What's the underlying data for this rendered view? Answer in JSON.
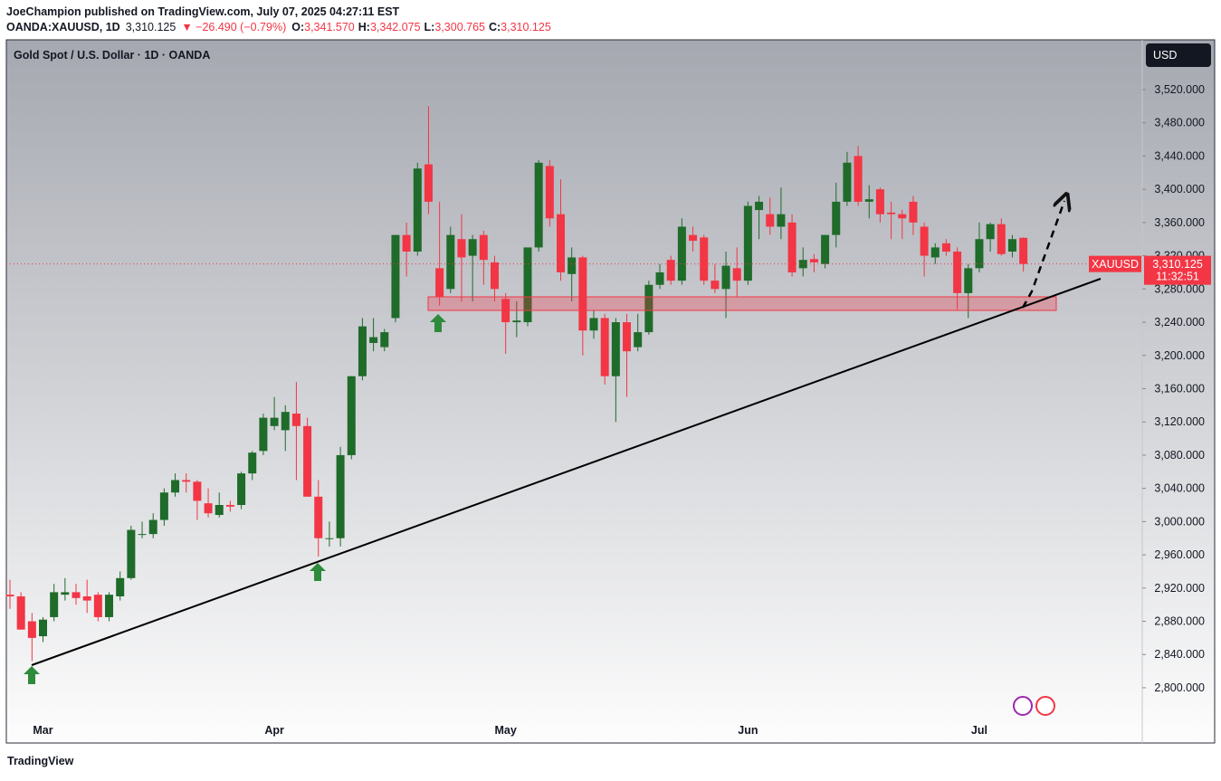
{
  "header": {
    "publisher": "JoeChampion published on TradingView.com, July 07, 2025 04:27:11 EST",
    "symbol": "OANDA:XAUUSD, 1D",
    "last": "3,310.125",
    "change": "▼ −26.490 (−0.79%)",
    "ohlc": [
      {
        "label": "O:",
        "value": "3,341.570"
      },
      {
        "label": "H:",
        "value": "3,342.075"
      },
      {
        "label": "L:",
        "value": "3,300.765"
      },
      {
        "label": "C:",
        "value": "3,310.125"
      }
    ]
  },
  "footer": {
    "brand": "TradingView"
  },
  "chart_data": {
    "type": "candlestick",
    "title": "Gold Spot / U.S. Dollar · 1D · OANDA",
    "currency": "USD",
    "symbol": "XAUUSD",
    "countdown": "11:32:51",
    "last_price": {
      "value": 3310.125,
      "label": "3,310.125"
    },
    "up_color": "#1f6b2a",
    "down_color": "#f23645",
    "categories": [
      null,
      null,
      null,
      "Mar",
      null,
      null,
      null,
      null,
      null,
      null,
      null,
      null,
      null,
      null,
      null,
      null,
      null,
      null,
      null,
      null,
      null,
      null,
      null,
      null,
      "Apr",
      null,
      null,
      null,
      null,
      null,
      null,
      null,
      null,
      null,
      null,
      null,
      null,
      null,
      null,
      null,
      null,
      null,
      null,
      null,
      null,
      "May",
      null,
      null,
      null,
      null,
      null,
      null,
      null,
      null,
      null,
      null,
      null,
      null,
      null,
      null,
      null,
      null,
      null,
      null,
      null,
      null,
      null,
      "Jun",
      null,
      null,
      null,
      null,
      null,
      null,
      null,
      null,
      null,
      null,
      null,
      null,
      null,
      null,
      null,
      null,
      null,
      null,
      null,
      null,
      "Jul",
      null,
      null,
      null,
      null
    ],
    "open": [
      2912,
      2910,
      2880,
      2862,
      2885,
      2912,
      2915,
      2910,
      2912,
      2885,
      2910,
      2932,
      2985,
      2985,
      3002,
      3035,
      3050,
      3048,
      3022,
      3008,
      3020,
      3020,
      3058,
      3085,
      3115,
      3110,
      3130,
      3115,
      3030,
      2980,
      2980,
      3080,
      3175,
      3215,
      3210,
      3245,
      3345,
      3325,
      3430,
      3305,
      3280,
      3340,
      3320,
      3345,
      3312,
      3268,
      3240,
      3240,
      3330,
      3428,
      3370,
      3298,
      3318,
      3230,
      3245,
      3175,
      3240,
      3210,
      3228,
      3285,
      3315,
      3290,
      3345,
      3342,
      3290,
      3280,
      3305,
      3290,
      3375,
      3370,
      3355,
      3360,
      3305,
      3316,
      3310,
      3345,
      3385,
      3440,
      3385,
      3400,
      3372,
      3370,
      3385,
      3355,
      3318,
      3335,
      3325,
      3275,
      3305,
      3340,
      3358,
      3325,
      3341.57
    ],
    "high": [
      2930,
      2915,
      2890,
      2885,
      2925,
      2932,
      2925,
      2930,
      2915,
      2915,
      2940,
      2995,
      3000,
      3010,
      3040,
      3058,
      3058,
      3050,
      3040,
      3035,
      3025,
      3060,
      3085,
      3130,
      3150,
      3140,
      3168,
      3125,
      3050,
      3000,
      3090,
      3175,
      3245,
      3245,
      3232,
      3345,
      3360,
      3432,
      3500,
      3385,
      3355,
      3370,
      3345,
      3350,
      3320,
      3275,
      3265,
      3330,
      3435,
      3435,
      3412,
      3330,
      3320,
      3255,
      3250,
      3245,
      3250,
      3250,
      3290,
      3310,
      3320,
      3365,
      3355,
      3345,
      3310,
      3325,
      3330,
      3385,
      3392,
      3390,
      3402,
      3370,
      3330,
      3322,
      3345,
      3408,
      3445,
      3452,
      3405,
      3402,
      3385,
      3375,
      3392,
      3360,
      3335,
      3340,
      3330,
      3310,
      3360,
      3360,
      3365,
      3345,
      3342.075
    ],
    "low": [
      2895,
      2870,
      2832,
      2855,
      2880,
      2905,
      2900,
      2890,
      2880,
      2880,
      2905,
      2930,
      2980,
      2980,
      2995,
      3030,
      3035,
      3002,
      3005,
      3005,
      3012,
      3015,
      3050,
      3080,
      3110,
      3085,
      3050,
      3030,
      2958,
      2970,
      2970,
      3075,
      3170,
      3205,
      3205,
      3240,
      3295,
      3320,
      3370,
      3260,
      3275,
      3265,
      3265,
      3285,
      3265,
      3202,
      3222,
      3235,
      3325,
      3355,
      3290,
      3265,
      3200,
      3220,
      3165,
      3120,
      3150,
      3205,
      3225,
      3280,
      3285,
      3285,
      3325,
      3285,
      3275,
      3245,
      3270,
      3285,
      3340,
      3345,
      3340,
      3295,
      3295,
      3300,
      3305,
      3330,
      3380,
      3380,
      3365,
      3360,
      3340,
      3340,
      3345,
      3295,
      3310,
      3320,
      3255,
      3245,
      3300,
      3325,
      3320,
      3318,
      3300.765
    ],
    "close": [
      2910,
      2870,
      2860,
      2882,
      2915,
      2915,
      2908,
      2905,
      2885,
      2912,
      2932,
      2990,
      2985,
      3002,
      3035,
      3050,
      3048,
      3025,
      3010,
      3020,
      3018,
      3058,
      3083,
      3125,
      3125,
      3132,
      3115,
      3030,
      2980,
      2980,
      3080,
      3175,
      3235,
      3222,
      3228,
      3345,
      3325,
      3425,
      3385,
      3270,
      3345,
      3318,
      3340,
      3315,
      3280,
      3240,
      3242,
      3330,
      3432,
      3365,
      3300,
      3318,
      3230,
      3245,
      3175,
      3240,
      3205,
      3228,
      3285,
      3300,
      3290,
      3355,
      3338,
      3290,
      3280,
      3308,
      3290,
      3380,
      3385,
      3355,
      3370,
      3300,
      3315,
      3312,
      3345,
      3385,
      3432,
      3385,
      3388,
      3370,
      3370,
      3365,
      3360,
      3320,
      3330,
      3325,
      3275,
      3305,
      3340,
      3358,
      3322,
      3340,
      3310.125
    ],
    "ylim": [
      2734.6,
      3579.9
    ],
    "yticks": [
      {
        "value": 2800,
        "label": "2,800.000"
      },
      {
        "value": 2840,
        "label": "2,840.000"
      },
      {
        "value": 2880,
        "label": "2,880.000"
      },
      {
        "value": 2920,
        "label": "2,920.000"
      },
      {
        "value": 2960,
        "label": "2,960.000"
      },
      {
        "value": 3000,
        "label": "3,000.000"
      },
      {
        "value": 3040,
        "label": "3,040.000"
      },
      {
        "value": 3080,
        "label": "3,080.000"
      },
      {
        "value": 3120,
        "label": "3,120.000"
      },
      {
        "value": 3160,
        "label": "3,160.000"
      },
      {
        "value": 3200,
        "label": "3,200.000"
      },
      {
        "value": 3240,
        "label": "3,240.000"
      },
      {
        "value": 3280,
        "label": "3,280.000"
      },
      {
        "value": 3320,
        "label": "3,320.000"
      },
      {
        "value": 3360,
        "label": "3,360.000"
      },
      {
        "value": 3400,
        "label": "3,400.000"
      },
      {
        "value": 3440,
        "label": "3,440.000"
      },
      {
        "value": 3480,
        "label": "3,480.000"
      },
      {
        "value": 3520,
        "label": "3,520.000"
      }
    ]
  }
}
